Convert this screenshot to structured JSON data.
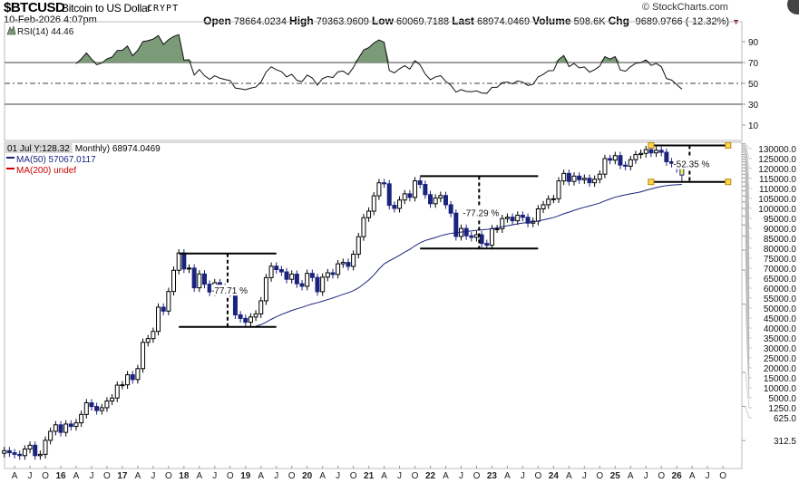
{
  "header": {
    "symbol": "$BTCUSD",
    "name": "Bitcoin to US Dollar",
    "exchange": "CRYPT",
    "date": "10-Feb-2026 4:07pm",
    "open_label": "Open",
    "open": "78664.0234",
    "high_label": "High",
    "high": "79363.9609",
    "low_label": "Low",
    "low": "60069.7188",
    "last_label": "Last",
    "last": "68974.0469",
    "volume_label": "Volume",
    "volume": "598.6K",
    "chg_label": "Chg",
    "chg": "-9689.9766 (-12.32%)",
    "brand": "© StockCharts.com"
  },
  "rsi_panel": {
    "label": "RSI(14) 44.46",
    "ticks": [
      90,
      70,
      50,
      30,
      10
    ],
    "overbought": 70,
    "oversold": 30,
    "fill_color": "#7b9a78"
  },
  "price_panel": {
    "legend_main_highlight": "01 Jul Y:128.32",
    "legend_main": "Monthly) 68974.0469",
    "legend_ma50": "MA(50) 57067.0117",
    "legend_ma200": "MA(200) undef",
    "ma50_color": "#1a237e",
    "ma200_color": "#cc0000",
    "up_color": "#000000",
    "down_color": "#1a237e",
    "axis_ticks": [
      130000,
      125000,
      120000,
      115000,
      110000,
      105000,
      100000,
      95000,
      90000,
      85000,
      80000,
      75000,
      70000,
      65000,
      60000,
      55000,
      50000,
      45000,
      40000,
      35000,
      30000,
      25000,
      20000,
      15000,
      10000,
      5000,
      1250,
      625,
      312.5
    ],
    "annotations": [
      {
        "label": "-77.71 %",
        "from_date": "2017-12",
        "to_date": "2019-07",
        "top": 14000,
        "bottom": 3150
      },
      {
        "label": "-77.29 %",
        "from_date": "2021-11",
        "to_date": "2023-10",
        "top": 67500,
        "bottom": 15500
      },
      {
        "label": "-52.35 %",
        "from_date": "2025-08",
        "to_date": "2026-11",
        "top": 126000,
        "bottom": 60000
      }
    ]
  },
  "chart_data": {
    "type": "candlestick",
    "scale": "log",
    "frequency": "monthly",
    "start": "2015-02",
    "closes": [
      254,
      244,
      236,
      230,
      263,
      284,
      230,
      236,
      314,
      377,
      430,
      369,
      437,
      416,
      448,
      531,
      673,
      624,
      575,
      609,
      698,
      742,
      963,
      970,
      1190,
      1080,
      1348,
      2300,
      2480,
      2875,
      4700,
      4340,
      6470,
      9950,
      14150,
      10220,
      10400,
      6970,
      9240,
      7500,
      6400,
      7730,
      7030,
      6625,
      6320,
      4020,
      3740,
      3460,
      3850,
      4100,
      5350,
      8570,
      10820,
      10090,
      9630,
      8290,
      9200,
      7570,
      7190,
      9350,
      8600,
      6440,
      8660,
      9460,
      9140,
      11350,
      11680,
      10780,
      13800,
      19700,
      29000,
      33100,
      45200,
      58900,
      57700,
      37300,
      35000,
      41500,
      47100,
      43800,
      61300,
      57000,
      46300,
      38500,
      43200,
      45500,
      37700,
      31800,
      19800,
      23300,
      20050,
      19430,
      20500,
      17170,
      16550,
      23140,
      23150,
      28480,
      29270,
      27220,
      30480,
      29230,
      25940,
      26970,
      34670,
      37720,
      42270,
      42580,
      61200,
      71300,
      60600,
      67500,
      62700,
      64600,
      59000,
      63300,
      70200,
      96400,
      93400,
      102400,
      84400,
      82500,
      94200,
      104600,
      107100,
      115700,
      108200,
      114000,
      109500,
      90400,
      87500,
      78664,
      68974
    ],
    "last_candle": {
      "open": 78664.0234,
      "high": 79363.9609,
      "low": 60069.7188,
      "close": 68974.0469
    },
    "x_tick_labels": [
      "A",
      "J",
      "O",
      "16",
      "A",
      "J",
      "O",
      "17",
      "A",
      "J",
      "O",
      "18",
      "A",
      "J",
      "O",
      "19",
      "A",
      "J",
      "O",
      "20",
      "A",
      "J",
      "O",
      "21",
      "A",
      "J",
      "O",
      "22",
      "A",
      "J",
      "O",
      "23",
      "A",
      "J",
      "O",
      "24",
      "A",
      "J",
      "O",
      "25",
      "A",
      "J",
      "O",
      "26",
      "A",
      "J",
      "O"
    ],
    "indicators": [
      "RSI(14)",
      "MA(50)",
      "MA(200)"
    ]
  }
}
